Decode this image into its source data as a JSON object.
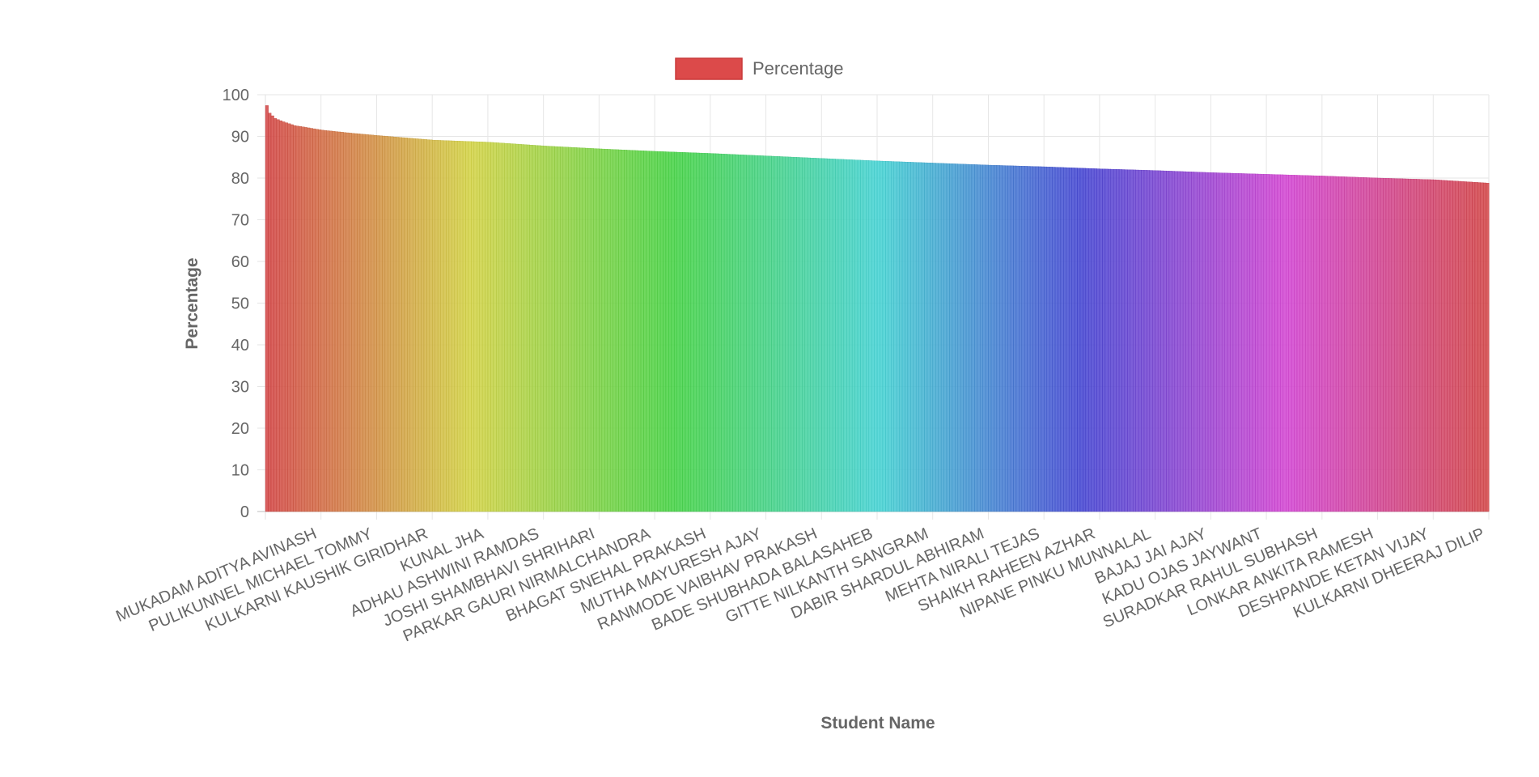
{
  "chart_data": {
    "type": "bar",
    "xlabel": "Student Name",
    "ylabel": "Percentage",
    "ylim": [
      0,
      100
    ],
    "ytick_step": 10,
    "grid": true,
    "legend": {
      "position": "top",
      "entries": [
        {
          "label": "Percentage",
          "color": "#dc4a4a"
        }
      ]
    },
    "bar_count": 440,
    "labeled_categories": [
      "MUKADAM ADITYA AVINASH",
      "PULIKUNNEL MICHAEL TOMMY",
      "KULKARNI KAUSHIK GIRIDHAR",
      "KUNAL JHA",
      "ADHAU ASHWINI RAMDAS",
      "JOSHI SHAMBHAVI SHRIHARI",
      "PARKAR GAURI NIRMALCHANDRA",
      "BHAGAT SNEHAL PRAKASH",
      "MUTHA MAYURESH AJAY",
      "RANMODE VAIBHAV PRAKASH",
      "BADE SHUBHADA BALASAHEB",
      "GITTE NILKANTH SANGRAM",
      "DABIR SHARDUL ABHIRAM",
      "MEHTA NIRALI TEJAS",
      "SHAIKH RAHEEN AZHAR",
      "NIPANE PINKU MUNNALAL",
      "BAJAJ JAI AJAY",
      "KADU OJAS JAYWANT",
      "SURADKAR RAHUL SUBHASH",
      "LONKAR ANKITA RAMESH",
      "DESHPANDE KETAN VIJAY",
      "KULKARNI DHEERAJ DILIP"
    ],
    "series": [
      {
        "name": "Percentage",
        "curve_keypoints": [
          [
            0,
            97.4
          ],
          [
            1,
            95.6
          ],
          [
            3,
            94.3
          ],
          [
            6,
            93.5
          ],
          [
            10,
            92.6
          ],
          [
            20,
            91.5
          ],
          [
            30,
            90.8
          ],
          [
            40,
            90.2
          ],
          [
            60,
            89.1
          ],
          [
            80,
            88.6
          ],
          [
            100,
            87.7
          ],
          [
            120,
            87.0
          ],
          [
            140,
            86.4
          ],
          [
            160,
            85.9
          ],
          [
            180,
            85.3
          ],
          [
            200,
            84.7
          ],
          [
            220,
            84.1
          ],
          [
            240,
            83.6
          ],
          [
            260,
            83.1
          ],
          [
            280,
            82.7
          ],
          [
            300,
            82.2
          ],
          [
            320,
            81.8
          ],
          [
            340,
            81.3
          ],
          [
            360,
            80.9
          ],
          [
            380,
            80.5
          ],
          [
            400,
            80.0
          ],
          [
            420,
            79.6
          ],
          [
            439,
            78.8
          ]
        ]
      }
    ]
  }
}
